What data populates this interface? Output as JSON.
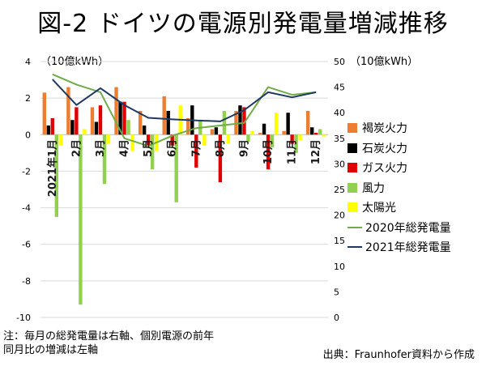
{
  "title": "図-2 ドイツの電源別発電量増減推移",
  "notes": {
    "line1": "注：毎月の総発電量は右軸、個別電源の前年",
    "line2": "同月比の増減は左軸",
    "source": "出典：Fraunhofer資料から作成"
  },
  "chart_data": {
    "type": "bar",
    "title": "図-2 ドイツの電源別発電量増減推移",
    "categories": [
      "2021年1月",
      "2月",
      "3月",
      "4月",
      "5月",
      "6月",
      "7月",
      "8月",
      "9月",
      "10月",
      "11月",
      "12月"
    ],
    "left_axis": {
      "unit": "（10億kWh）",
      "min": -10,
      "max": 4,
      "ticks": [
        4,
        2,
        0,
        -2,
        -4,
        -6,
        -8,
        -10
      ]
    },
    "right_axis": {
      "unit": "（10億kWh）",
      "min": 0,
      "max": 50,
      "ticks": [
        50,
        45,
        40,
        35,
        30,
        25,
        20,
        15,
        10,
        5,
        0
      ]
    },
    "series": [
      {
        "name": "褐炭火力",
        "type": "bar",
        "color": "#ED7D31",
        "values": [
          2.3,
          2.6,
          1.5,
          2.6,
          1.3,
          2.1,
          0.9,
          0.3,
          1.3,
          0.1,
          0.2,
          1.3
        ]
      },
      {
        "name": "石炭火力",
        "type": "bar",
        "color": "#000000",
        "values": [
          0.5,
          0.8,
          0.7,
          1.8,
          0.5,
          1.3,
          1.6,
          0.4,
          1.6,
          0.6,
          1.2,
          0.4
        ]
      },
      {
        "name": "ガス火力",
        "type": "bar",
        "color": "#E00000",
        "values": [
          0.9,
          1.5,
          1.6,
          1.8,
          -0.6,
          -0.6,
          -1.8,
          -2.6,
          1.5,
          -1.9,
          -0.5,
          0.1
        ]
      },
      {
        "name": "風力",
        "type": "bar",
        "color": "#92D050",
        "values": [
          -4.5,
          -9.3,
          -2.7,
          0.8,
          -1.9,
          -3.7,
          0.8,
          1.3,
          -0.4,
          -0.7,
          -1.0,
          0.3
        ]
      },
      {
        "name": "太陽光",
        "type": "bar",
        "color": "#FFFF00",
        "values": [
          -0.6,
          0.3,
          -0.5,
          -0.9,
          -0.9,
          1.6,
          -0.6,
          -0.5,
          0.2,
          1.2,
          -0.3,
          -0.1
        ]
      },
      {
        "name": "2020年総発電量",
        "type": "line",
        "color": "#70AD47",
        "values": [
          47.5,
          45.5,
          44,
          35,
          33.5,
          35.5,
          37,
          37.5,
          38,
          45,
          43.5,
          44
        ]
      },
      {
        "name": "2021年総発電量",
        "type": "line",
        "color": "#1F3864",
        "values": [
          46.5,
          41.5,
          44.8,
          41.5,
          39,
          38.7,
          38.5,
          38.3,
          40.5,
          44,
          43,
          44
        ]
      }
    ]
  }
}
